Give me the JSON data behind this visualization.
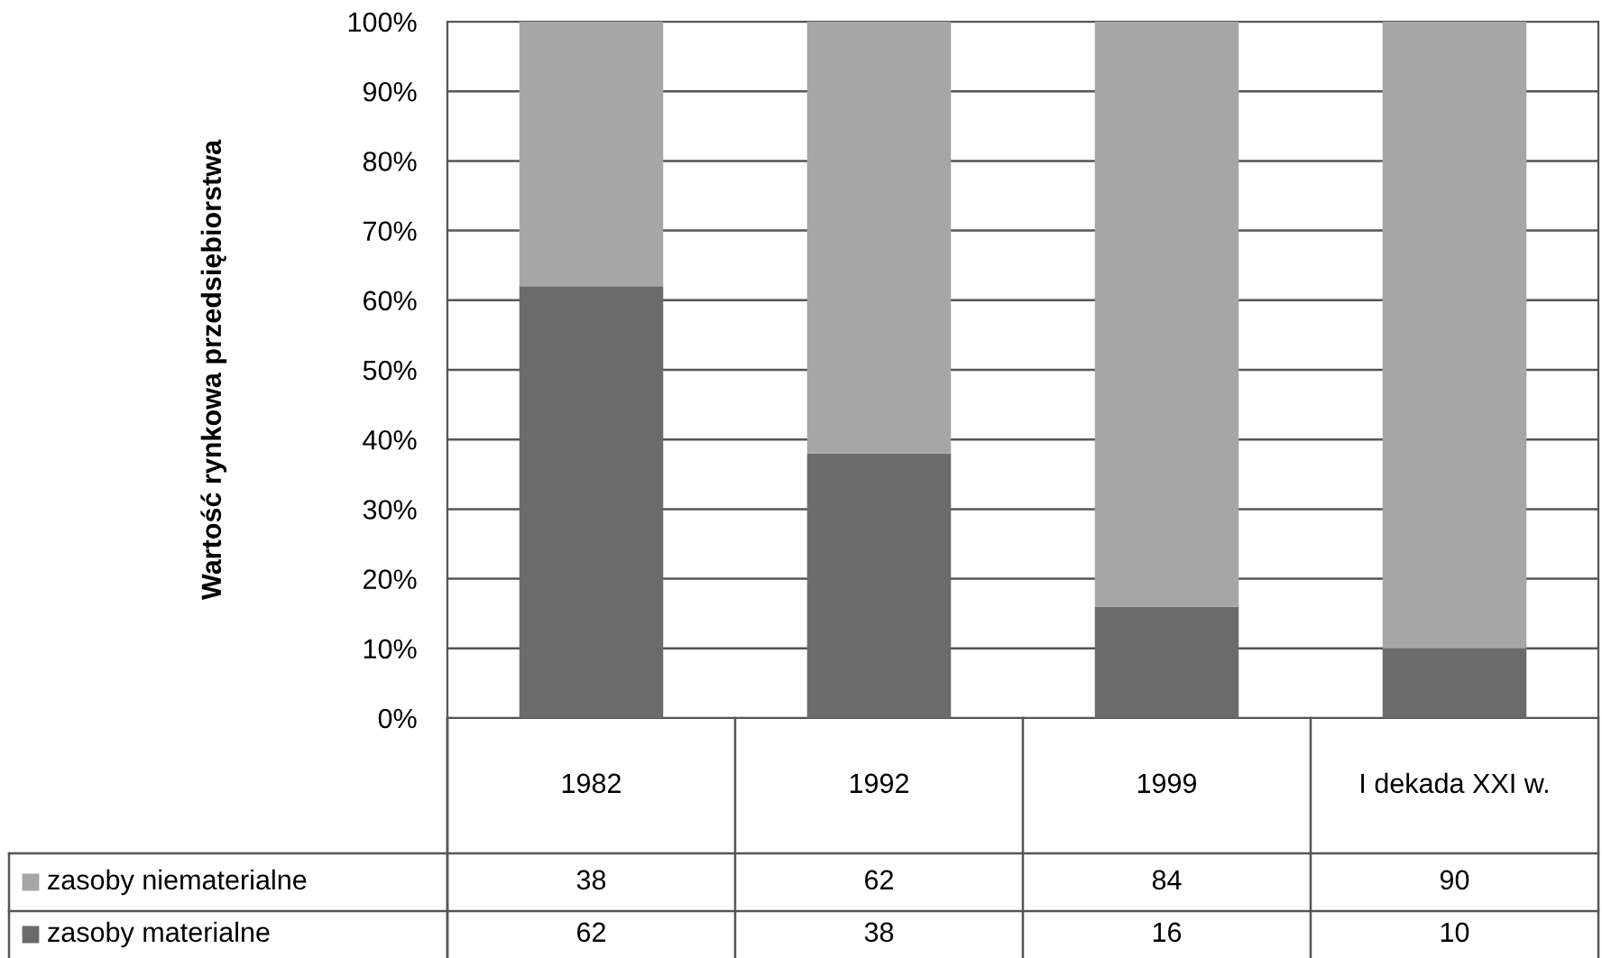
{
  "chart_data": {
    "type": "bar",
    "stacked": true,
    "ylabel": "Wartość rynkowa przedsiębiorstwa",
    "categories": [
      "1982",
      "1992",
      "1999",
      "I dekada XXI w."
    ],
    "series": [
      {
        "name": "zasoby materialne",
        "color": "#6b6b6b",
        "values": [
          62,
          38,
          16,
          10
        ]
      },
      {
        "name": "zasoby niematerialne",
        "color": "#a6a6a6",
        "values": [
          38,
          62,
          84,
          90
        ]
      }
    ],
    "ylim": [
      0,
      100
    ],
    "yticks": [
      {
        "value": 0,
        "label": "0%"
      },
      {
        "value": 10,
        "label": "10%"
      },
      {
        "value": 20,
        "label": "20%"
      },
      {
        "value": 30,
        "label": "30%"
      },
      {
        "value": 40,
        "label": "40%"
      },
      {
        "value": 50,
        "label": "50%"
      },
      {
        "value": 60,
        "label": "60%"
      },
      {
        "value": 70,
        "label": "70%"
      },
      {
        "value": 80,
        "label": "80%"
      },
      {
        "value": 90,
        "label": "90%"
      },
      {
        "value": 100,
        "label": "100%"
      }
    ],
    "grid": "y",
    "legend": "bottom left",
    "data_labels": true
  }
}
